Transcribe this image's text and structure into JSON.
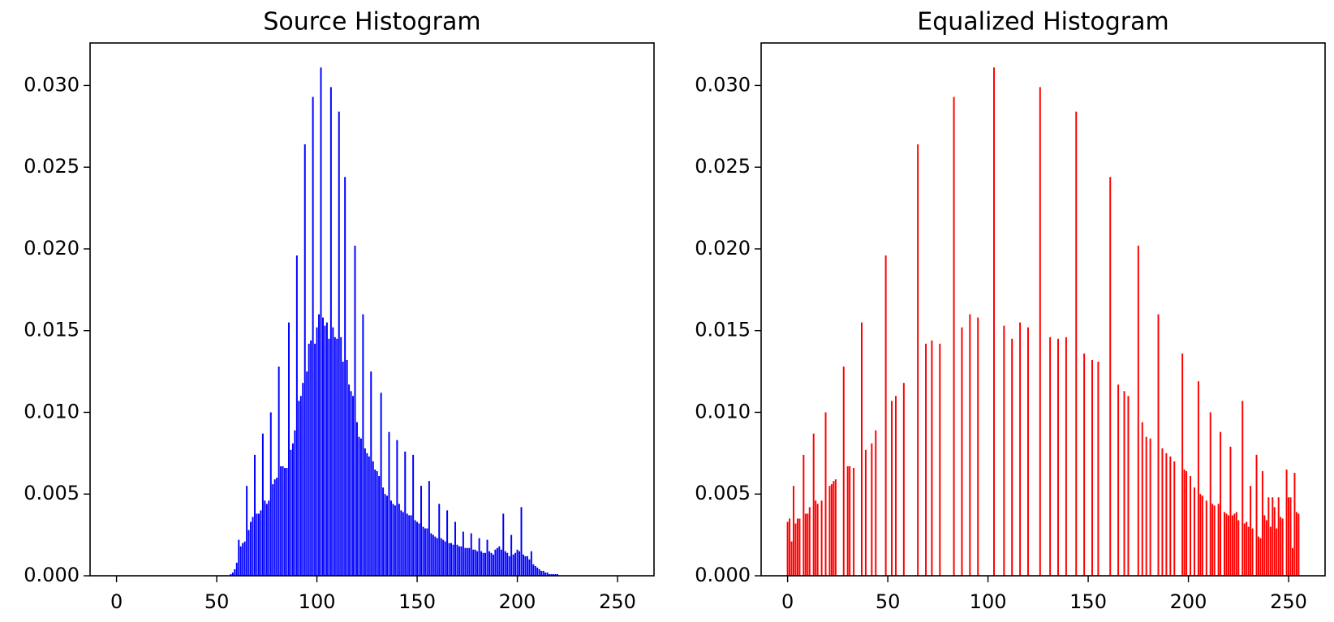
{
  "chart_data": [
    {
      "type": "bar",
      "title": "Source Histogram",
      "color": "#0000ff",
      "x": [
        57,
        58,
        59,
        60,
        61,
        62,
        63,
        64,
        65,
        66,
        67,
        68,
        69,
        70,
        71,
        72,
        73,
        74,
        75,
        76,
        77,
        78,
        79,
        80,
        81,
        82,
        83,
        84,
        85,
        86,
        87,
        88,
        89,
        90,
        91,
        92,
        93,
        94,
        95,
        96,
        97,
        98,
        99,
        100,
        101,
        102,
        103,
        104,
        105,
        106,
        107,
        108,
        109,
        110,
        111,
        112,
        113,
        114,
        115,
        116,
        117,
        118,
        119,
        120,
        121,
        122,
        123,
        124,
        125,
        126,
        127,
        128,
        129,
        130,
        131,
        132,
        133,
        134,
        135,
        136,
        137,
        138,
        139,
        140,
        141,
        142,
        143,
        144,
        145,
        146,
        147,
        148,
        149,
        150,
        151,
        152,
        153,
        154,
        155,
        156,
        157,
        158,
        159,
        160,
        161,
        162,
        163,
        164,
        165,
        166,
        167,
        168,
        169,
        170,
        171,
        172,
        173,
        174,
        175,
        176,
        177,
        178,
        179,
        180,
        181,
        182,
        183,
        184,
        185,
        186,
        187,
        188,
        189,
        190,
        191,
        192,
        193,
        194,
        195,
        196,
        197,
        198,
        199,
        200,
        201,
        202,
        203,
        204,
        205,
        206,
        207,
        208,
        209,
        210,
        211,
        212,
        213,
        214,
        215,
        216,
        217,
        218,
        219,
        220
      ],
      "values": [
        0.0001,
        0.0002,
        0.0004,
        0.0008,
        0.0022,
        0.0018,
        0.002,
        0.0021,
        0.0055,
        0.0028,
        0.0033,
        0.0036,
        0.0074,
        0.0038,
        0.0038,
        0.004,
        0.0087,
        0.0046,
        0.0044,
        0.0046,
        0.01,
        0.0056,
        0.0059,
        0.006,
        0.0128,
        0.0067,
        0.0067,
        0.0066,
        0.0066,
        0.0155,
        0.0077,
        0.0081,
        0.0089,
        0.0196,
        0.0107,
        0.011,
        0.0118,
        0.0264,
        0.0125,
        0.0142,
        0.0144,
        0.0293,
        0.0142,
        0.0152,
        0.016,
        0.0311,
        0.0158,
        0.0153,
        0.0155,
        0.0145,
        0.0299,
        0.0152,
        0.0146,
        0.0145,
        0.0284,
        0.0146,
        0.0131,
        0.0244,
        0.0132,
        0.0117,
        0.0113,
        0.011,
        0.0202,
        0.0094,
        0.0085,
        0.0084,
        0.016,
        0.0078,
        0.0075,
        0.0073,
        0.0125,
        0.007,
        0.0065,
        0.0064,
        0.0061,
        0.0112,
        0.0054,
        0.005,
        0.0049,
        0.0088,
        0.0046,
        0.0044,
        0.0043,
        0.0083,
        0.0044,
        0.004,
        0.0039,
        0.0076,
        0.0038,
        0.0037,
        0.0037,
        0.0074,
        0.0034,
        0.0033,
        0.0032,
        0.0055,
        0.003,
        0.0029,
        0.0029,
        0.0058,
        0.0026,
        0.0025,
        0.0024,
        0.0023,
        0.0044,
        0.0023,
        0.0022,
        0.0021,
        0.004,
        0.002,
        0.002,
        0.0019,
        0.0033,
        0.0019,
        0.0018,
        0.0018,
        0.0027,
        0.0017,
        0.0017,
        0.0017,
        0.0026,
        0.0016,
        0.0016,
        0.0015,
        0.0023,
        0.0015,
        0.0014,
        0.0014,
        0.0022,
        0.0015,
        0.0014,
        0.0013,
        0.0016,
        0.0017,
        0.0018,
        0.0016,
        0.0038,
        0.0015,
        0.0014,
        0.0012,
        0.0025,
        0.0013,
        0.0014,
        0.0016,
        0.0015,
        0.0042,
        0.0013,
        0.0012,
        0.0012,
        0.001,
        0.0015,
        0.0007,
        0.0006,
        0.0005,
        0.0004,
        0.0003,
        0.0003,
        0.0002,
        0.0002,
        0.0001,
        0.0001,
        0.0001,
        0.0001,
        0.0001
      ],
      "xlim": [
        -13.2,
        268.2
      ],
      "ylim": [
        0,
        0.0326
      ],
      "xticks": [
        0,
        50,
        100,
        150,
        200,
        250
      ],
      "yticks": [
        {
          "value": 0,
          "label": "0.000"
        },
        {
          "value": 0.005,
          "label": "0.005"
        },
        {
          "value": 0.01,
          "label": "0.010"
        },
        {
          "value": 0.015,
          "label": "0.015"
        },
        {
          "value": 0.02,
          "label": "0.020"
        },
        {
          "value": 0.025,
          "label": "0.025"
        },
        {
          "value": 0.03,
          "label": "0.030"
        }
      ]
    },
    {
      "type": "bar",
      "title": "Equalized Histogram",
      "color": "#ff0000",
      "x": [
        0,
        1,
        2,
        3,
        4,
        5,
        6,
        8,
        9,
        10,
        11,
        13,
        14,
        15,
        17,
        19,
        21,
        22,
        23,
        24,
        28,
        30,
        31,
        33,
        37,
        39,
        42,
        44,
        49,
        52,
        54,
        58,
        65,
        69,
        72,
        76,
        83,
        87,
        91,
        95,
        103,
        108,
        112,
        116,
        120,
        126,
        131,
        135,
        139,
        144,
        148,
        152,
        155,
        161,
        165,
        168,
        170,
        175,
        177,
        179,
        181,
        185,
        187,
        189,
        191,
        193,
        197,
        198,
        199,
        201,
        203,
        205,
        206,
        207,
        209,
        211,
        212,
        213,
        215,
        216,
        218,
        219,
        220,
        221,
        222,
        223,
        224,
        225,
        227,
        228,
        229,
        230,
        231,
        232,
        234,
        235,
        236,
        237,
        238,
        239,
        240,
        241,
        242,
        243,
        244,
        245,
        246,
        247,
        249,
        250,
        251,
        252,
        253,
        254,
        255
      ],
      "values": [
        0.0033,
        0.0035,
        0.0021,
        0.0055,
        0.0032,
        0.0035,
        0.0035,
        0.0074,
        0.0038,
        0.0038,
        0.0042,
        0.0087,
        0.0046,
        0.0044,
        0.0046,
        0.01,
        0.0055,
        0.0056,
        0.0058,
        0.0059,
        0.0128,
        0.0067,
        0.0067,
        0.0066,
        0.0155,
        0.0077,
        0.0081,
        0.0089,
        0.0196,
        0.0107,
        0.011,
        0.0118,
        0.0264,
        0.0142,
        0.0144,
        0.0142,
        0.0293,
        0.0152,
        0.016,
        0.0158,
        0.0311,
        0.0153,
        0.0145,
        0.0155,
        0.0152,
        0.0299,
        0.0146,
        0.0145,
        0.0146,
        0.0284,
        0.0136,
        0.0132,
        0.0131,
        0.0244,
        0.0117,
        0.0113,
        0.011,
        0.0202,
        0.0094,
        0.0085,
        0.0084,
        0.016,
        0.0078,
        0.0075,
        0.0073,
        0.007,
        0.0136,
        0.0065,
        0.0064,
        0.0061,
        0.0054,
        0.0119,
        0.005,
        0.0049,
        0.0046,
        0.01,
        0.0044,
        0.0043,
        0.0044,
        0.0088,
        0.0039,
        0.0038,
        0.0037,
        0.0079,
        0.0037,
        0.0038,
        0.0039,
        0.0034,
        0.0107,
        0.0032,
        0.0033,
        0.003,
        0.0055,
        0.0029,
        0.0074,
        0.0024,
        0.0023,
        0.0064,
        0.0037,
        0.0034,
        0.0048,
        0.003,
        0.0048,
        0.0042,
        0.0029,
        0.0048,
        0.0036,
        0.0035,
        0.0065,
        0.0048,
        0.0048,
        0.0017,
        0.0063,
        0.0039,
        0.0038
      ],
      "xlim": [
        -13.2,
        268.2
      ],
      "ylim": [
        0,
        0.0326
      ],
      "xticks": [
        0,
        50,
        100,
        150,
        200,
        250
      ],
      "yticks": [
        {
          "value": 0,
          "label": "0.000"
        },
        {
          "value": 0.005,
          "label": "0.005"
        },
        {
          "value": 0.01,
          "label": "0.010"
        },
        {
          "value": 0.015,
          "label": "0.015"
        },
        {
          "value": 0.02,
          "label": "0.020"
        },
        {
          "value": 0.025,
          "label": "0.025"
        },
        {
          "value": 0.03,
          "label": "0.030"
        }
      ]
    }
  ]
}
